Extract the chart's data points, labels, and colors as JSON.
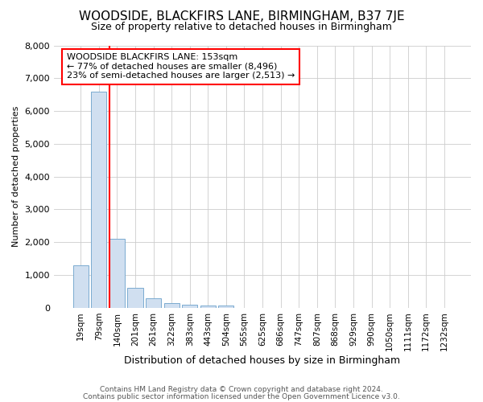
{
  "title": "WOODSIDE, BLACKFIRS LANE, BIRMINGHAM, B37 7JE",
  "subtitle": "Size of property relative to detached houses in Birmingham",
  "xlabel": "Distribution of detached houses by size in Birmingham",
  "ylabel": "Number of detached properties",
  "categories": [
    "19sqm",
    "79sqm",
    "140sqm",
    "201sqm",
    "261sqm",
    "322sqm",
    "383sqm",
    "443sqm",
    "504sqm",
    "565sqm",
    "625sqm",
    "686sqm",
    "747sqm",
    "807sqm",
    "868sqm",
    "929sqm",
    "990sqm",
    "1050sqm",
    "1111sqm",
    "1172sqm",
    "1232sqm"
  ],
  "values": [
    1300,
    6600,
    2100,
    620,
    300,
    150,
    100,
    60,
    60,
    0,
    0,
    0,
    0,
    0,
    0,
    0,
    0,
    0,
    0,
    0,
    0
  ],
  "bar_color": "#d0dff0",
  "bar_edge_color": "#7aaad0",
  "vline_color": "red",
  "vline_x_index": 2,
  "annotation_text": "WOODSIDE BLACKFIRS LANE: 153sqm\n← 77% of detached houses are smaller (8,496)\n23% of semi-detached houses are larger (2,513) →",
  "annotation_box_facecolor": "white",
  "annotation_box_edgecolor": "red",
  "ylim": [
    0,
    8000
  ],
  "yticks": [
    0,
    1000,
    2000,
    3000,
    4000,
    5000,
    6000,
    7000,
    8000
  ],
  "grid_color": "#cccccc",
  "bg_color": "#ffffff",
  "plot_bg_color": "#ffffff",
  "footer_line1": "Contains HM Land Registry data © Crown copyright and database right 2024.",
  "footer_line2": "Contains public sector information licensed under the Open Government Licence v3.0.",
  "title_fontsize": 11,
  "subtitle_fontsize": 9,
  "ylabel_fontsize": 8,
  "xlabel_fontsize": 9,
  "tick_fontsize": 8,
  "xtick_fontsize": 7.5,
  "footer_fontsize": 6.5,
  "annotation_fontsize": 8
}
